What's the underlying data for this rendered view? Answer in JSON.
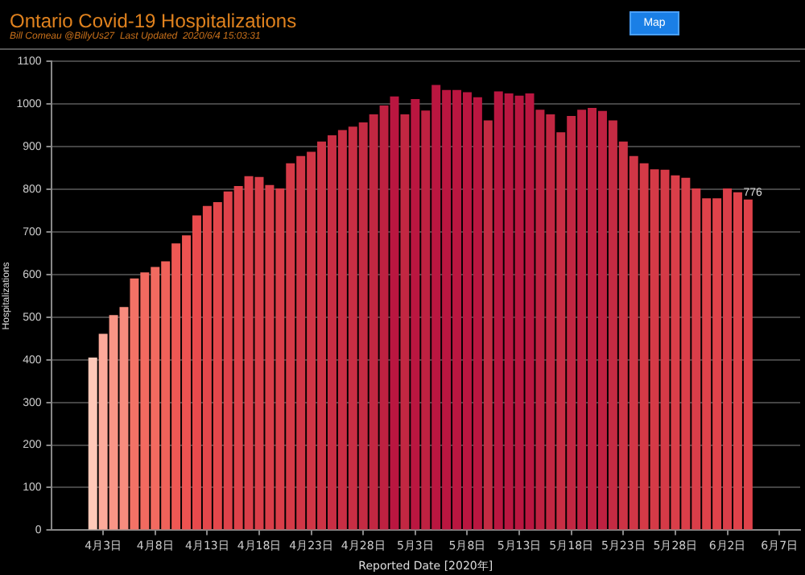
{
  "chart_data": {
    "type": "bar",
    "title": "Ontario Covid-19 Hospitalizations",
    "subtitle": "Bill Comeau @BillyUs27  Last Updated  2020/6/4 15:03:31",
    "xlabel": "Reported Date [2020年]",
    "ylabel": "Hospitalizations",
    "annotations": [
      "Map"
    ],
    "x": [
      "2020-04-02",
      "2020-04-03",
      "2020-04-04",
      "2020-04-05",
      "2020-04-06",
      "2020-04-07",
      "2020-04-08",
      "2020-04-09",
      "2020-04-10",
      "2020-04-11",
      "2020-04-12",
      "2020-04-13",
      "2020-04-14",
      "2020-04-15",
      "2020-04-16",
      "2020-04-17",
      "2020-04-18",
      "2020-04-19",
      "2020-04-20",
      "2020-04-21",
      "2020-04-22",
      "2020-04-23",
      "2020-04-24",
      "2020-04-25",
      "2020-04-26",
      "2020-04-27",
      "2020-04-28",
      "2020-04-29",
      "2020-04-30",
      "2020-05-01",
      "2020-05-02",
      "2020-05-03",
      "2020-05-04",
      "2020-05-05",
      "2020-05-06",
      "2020-05-07",
      "2020-05-08",
      "2020-05-09",
      "2020-05-10",
      "2020-05-11",
      "2020-05-12",
      "2020-05-13",
      "2020-05-14",
      "2020-05-15",
      "2020-05-16",
      "2020-05-17",
      "2020-05-18",
      "2020-05-19",
      "2020-05-20",
      "2020-05-21",
      "2020-05-22",
      "2020-05-23",
      "2020-05-24",
      "2020-05-25",
      "2020-05-26",
      "2020-05-27",
      "2020-05-28",
      "2020-05-29",
      "2020-05-30",
      "2020-05-31",
      "2020-06-01",
      "2020-06-02",
      "2020-06-03",
      "2020-06-04"
    ],
    "values": [
      405,
      461,
      505,
      524,
      591,
      605,
      618,
      631,
      673,
      692,
      739,
      761,
      770,
      795,
      808,
      831,
      829,
      810,
      802,
      861,
      878,
      888,
      912,
      927,
      939,
      947,
      957,
      976,
      997,
      1018,
      976,
      1012,
      985,
      1045,
      1033,
      1033,
      1028,
      1016,
      962,
      1030,
      1025,
      1020,
      1025,
      987,
      976,
      934,
      972,
      987,
      991,
      984,
      962,
      912,
      878,
      861,
      847,
      846,
      833,
      827,
      802,
      779,
      779,
      802,
      793,
      776
    ],
    "colors": [
      "#ffc8b8",
      "#fcaa9a",
      "#f99586",
      "#f88c7e",
      "#f37266",
      "#f26a60",
      "#f26a60",
      "#f0625a",
      "#ee5854",
      "#ed5351",
      "#e84a4c",
      "#e4474b",
      "#e4474b",
      "#df424a",
      "#df424a",
      "#da3e49",
      "#da3e49",
      "#da3e49",
      "#da3e49",
      "#d53a47",
      "#d03646",
      "#d03646",
      "#cc3345",
      "#c82e44",
      "#c82e44",
      "#c82e44",
      "#c42b43",
      "#c22742",
      "#be2141",
      "#ba1640",
      "#c22742",
      "#ba1640",
      "#be2141",
      "#ba1640",
      "#ba1640",
      "#ba1640",
      "#ba1640",
      "#ba1640",
      "#c42b43",
      "#ba1640",
      "#ba1640",
      "#ba1640",
      "#ba1640",
      "#be2141",
      "#c22742",
      "#c82e44",
      "#c22742",
      "#be2141",
      "#be2141",
      "#be2141",
      "#c42b43",
      "#cc3345",
      "#d03646",
      "#d53a47",
      "#d53a47",
      "#d53a47",
      "#da3e49",
      "#da3e49",
      "#da3e49",
      "#df424a",
      "#df424a",
      "#da3e49",
      "#df424a",
      "#df424a"
    ],
    "value_labels": [
      null,
      null,
      null,
      null,
      null,
      null,
      null,
      null,
      null,
      null,
      null,
      null,
      null,
      null,
      null,
      null,
      null,
      null,
      null,
      null,
      null,
      null,
      null,
      null,
      null,
      null,
      null,
      null,
      null,
      null,
      null,
      null,
      null,
      null,
      null,
      null,
      null,
      null,
      null,
      null,
      null,
      null,
      null,
      null,
      null,
      null,
      null,
      null,
      null,
      null,
      null,
      null,
      null,
      null,
      null,
      null,
      null,
      null,
      null,
      null,
      null,
      null,
      null,
      "776"
    ],
    "xlim": [
      "2020-03-29",
      "2020-06-09"
    ],
    "xticks": [
      {
        "value": "2020-04-03",
        "label": "4月3日"
      },
      {
        "value": "2020-04-08",
        "label": "4月8日"
      },
      {
        "value": "2020-04-13",
        "label": "4月13日"
      },
      {
        "value": "2020-04-18",
        "label": "4月18日"
      },
      {
        "value": "2020-04-23",
        "label": "4月23日"
      },
      {
        "value": "2020-04-28",
        "label": "4月28日"
      },
      {
        "value": "2020-05-03",
        "label": "5月3日"
      },
      {
        "value": "2020-05-08",
        "label": "5月8日"
      },
      {
        "value": "2020-05-13",
        "label": "5月13日"
      },
      {
        "value": "2020-05-18",
        "label": "5月18日"
      },
      {
        "value": "2020-05-23",
        "label": "5月23日"
      },
      {
        "value": "2020-05-28",
        "label": "5月28日"
      },
      {
        "value": "2020-06-02",
        "label": "6月2日"
      },
      {
        "value": "2020-06-07",
        "label": "6月7日"
      }
    ],
    "ylim": [
      0,
      1100
    ],
    "yticks": [
      0,
      100,
      200,
      300,
      400,
      500,
      600,
      700,
      800,
      900,
      1000,
      1100
    ],
    "grid": "y"
  }
}
